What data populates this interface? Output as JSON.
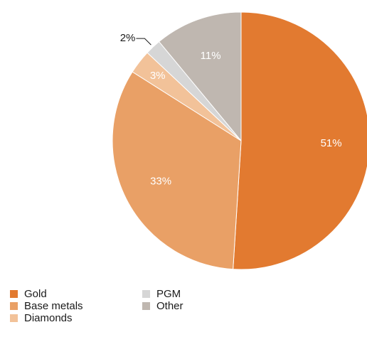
{
  "chart_data": {
    "type": "pie",
    "start_angle_deg": 0,
    "direction": "clockwise",
    "slices": [
      {
        "label": "Gold",
        "value": 51,
        "display": "51%",
        "color": "#E27A30",
        "label_color": "#ffffff"
      },
      {
        "label": "Base metals",
        "value": 33,
        "display": "33%",
        "color": "#E9A066",
        "label_color": "#ffffff"
      },
      {
        "label": "Diamonds",
        "value": 3,
        "display": "3%",
        "color": "#F2C299",
        "label_color": "#ffffff"
      },
      {
        "label": "PGM",
        "value": 2,
        "display": "2%",
        "color": "#D6D6D6",
        "label_color": "#1a1a1a",
        "leader_line": true
      },
      {
        "label": "Other",
        "value": 11,
        "display": "11%",
        "color": "#BFB7B0",
        "label_color": "#ffffff"
      }
    ],
    "legend": {
      "placement": "bottom-left",
      "columns": [
        [
          "Gold",
          "Base metals",
          "Diamonds"
        ],
        [
          "PGM",
          "Other"
        ]
      ]
    }
  }
}
